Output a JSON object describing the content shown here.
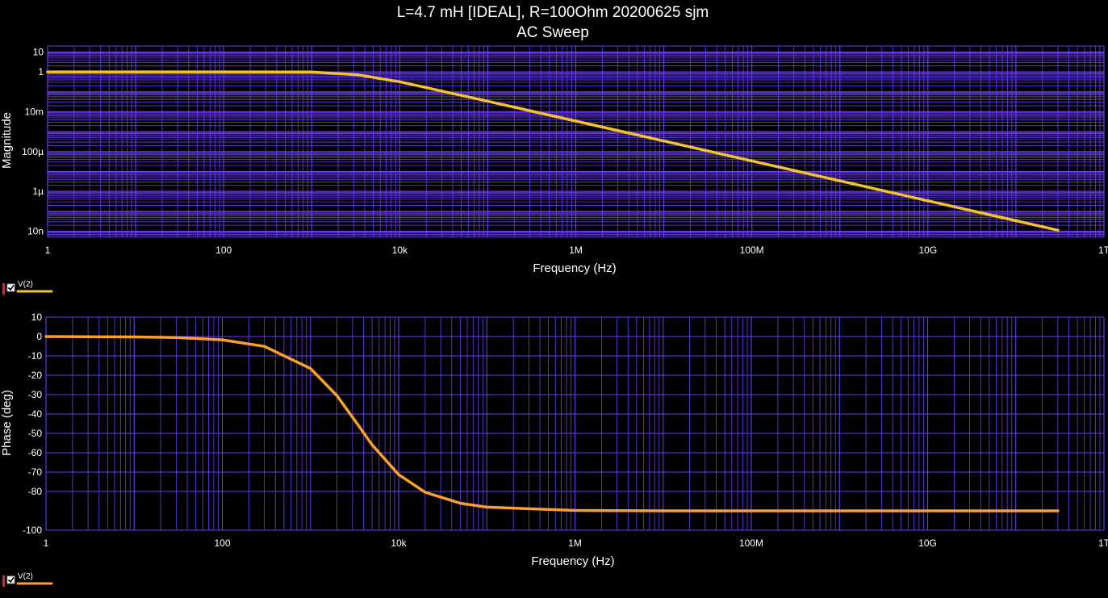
{
  "title": {
    "line1": "L=4.7 mH [IDEAL], R=100Ohm 20200625 sjm",
    "line2": "AC Sweep"
  },
  "colors": {
    "background": "#000000",
    "grid": "#6a3cf0",
    "magnitude_trace": "#f2c230",
    "phase_trace": "#f7a032",
    "text": "#ffffff"
  },
  "chart_data": [
    {
      "type": "line",
      "title": "",
      "xlabel": "Frequency (Hz)",
      "ylabel": "Magnitude",
      "x_scale": "log",
      "y_scale": "log",
      "xlim": [
        1,
        1000000000000
      ],
      "ylim": [
        5e-09,
        20
      ],
      "x_ticks": [
        1,
        100,
        10000,
        1000000,
        100000000,
        10000000000,
        1000000000000
      ],
      "x_tick_labels": [
        "1",
        "100",
        "10k",
        "1M",
        "100M",
        "10G",
        "1T"
      ],
      "y_ticks": [
        10,
        1,
        0.01,
        0.0001,
        1e-06,
        1e-08
      ],
      "y_tick_labels": [
        "10",
        "1",
        "10m",
        "100µ",
        "1µ",
        "10n"
      ],
      "grid": true,
      "legend": {
        "position": "bottom-left",
        "entries": [
          "V(2)"
        ]
      },
      "series": [
        {
          "name": "V(2)",
          "x": [
            1,
            10,
            100,
            1000,
            3386,
            10000,
            100000,
            1000000,
            10000000,
            100000000,
            1000000000,
            10000000000,
            100000000000,
            300000000000
          ],
          "y": [
            1,
            1,
            1,
            0.995,
            0.707,
            0.32,
            0.034,
            0.0034,
            0.00034,
            3.4e-05,
            3.4e-06,
            3.4e-07,
            3.4e-08,
            1.13e-08
          ]
        }
      ]
    },
    {
      "type": "line",
      "title": "",
      "xlabel": "Frequency (Hz)",
      "ylabel": "Phase (deg)",
      "x_scale": "log",
      "y_scale": "linear",
      "xlim": [
        1,
        1000000000000
      ],
      "ylim": [
        -100,
        10
      ],
      "x_ticks": [
        1,
        100,
        10000,
        1000000,
        100000000,
        10000000000,
        1000000000000
      ],
      "x_tick_labels": [
        "1",
        "100",
        "10k",
        "1M",
        "100M",
        "10G",
        "1T"
      ],
      "y_ticks": [
        10,
        0,
        -10,
        -20,
        -30,
        -40,
        -50,
        -60,
        -70,
        -80,
        -100
      ],
      "y_tick_labels": [
        "10",
        "0",
        "-10",
        "-20",
        "-30",
        "-40",
        "-50",
        "-60",
        "-70",
        "-80",
        "-100"
      ],
      "grid": true,
      "legend": {
        "position": "bottom-left",
        "entries": [
          "V(2)"
        ]
      },
      "series": [
        {
          "name": "V(2)",
          "x": [
            1,
            10,
            30,
            100,
            300,
            1000,
            2000,
            3386,
            5000,
            10000,
            20000,
            50000,
            100000,
            1000000,
            10000000,
            100000000,
            1000000000,
            10000000000,
            100000000000,
            300000000000
          ],
          "y": [
            0,
            -0.2,
            -0.5,
            -1.7,
            -5.1,
            -16.5,
            -30.6,
            -45,
            -55.9,
            -71.3,
            -80.4,
            -86.1,
            -88.1,
            -89.8,
            -90,
            -90,
            -90,
            -90,
            -90,
            -90
          ]
        }
      ]
    }
  ]
}
